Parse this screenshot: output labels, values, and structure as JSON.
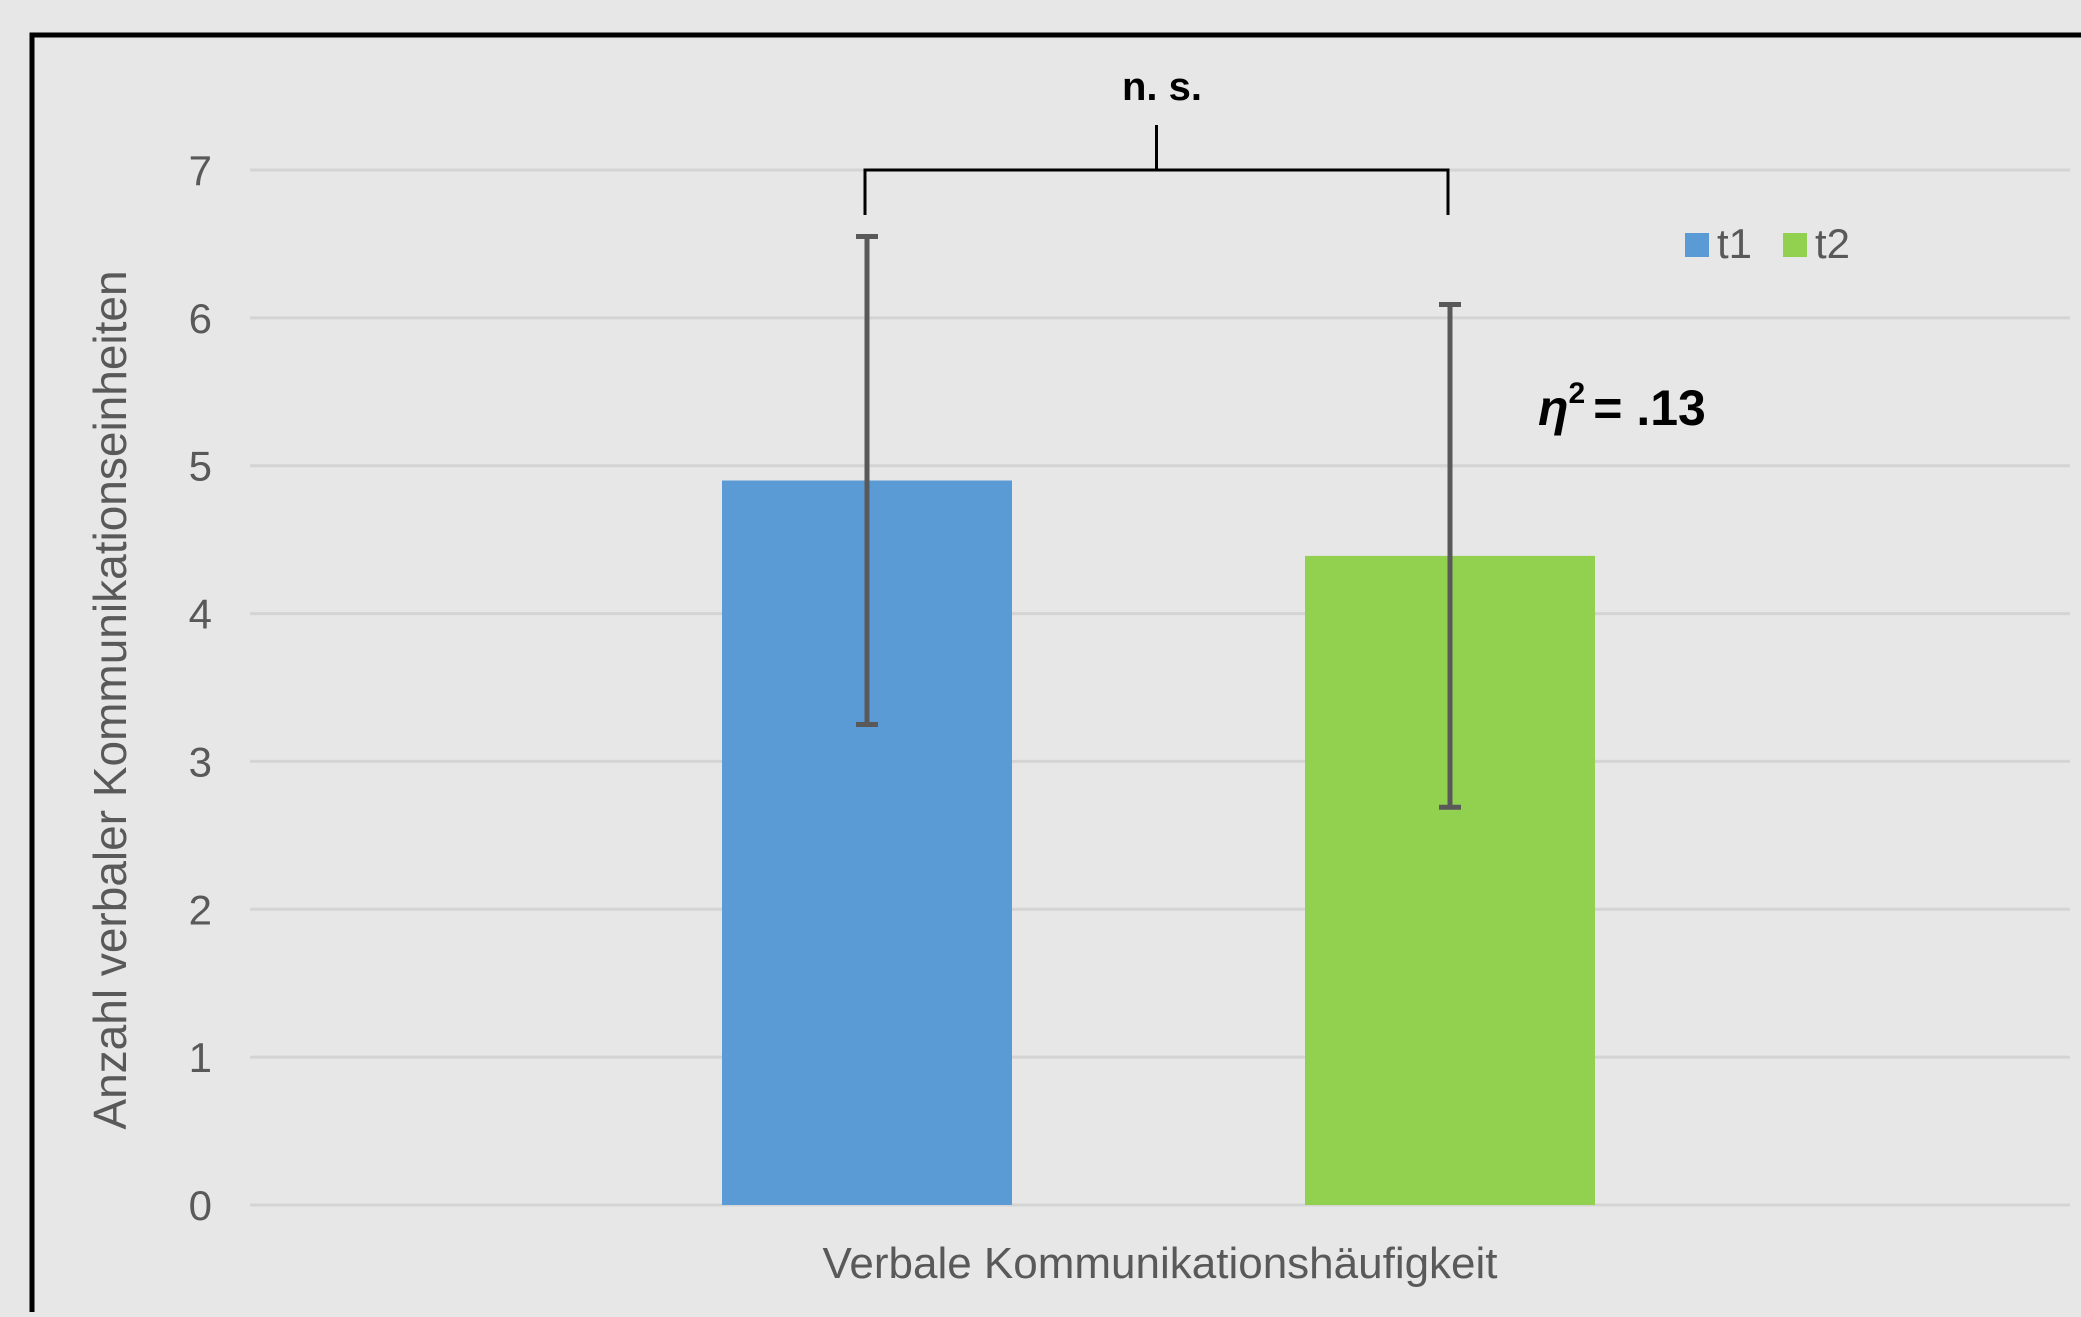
{
  "chart_data": {
    "type": "bar",
    "title": "",
    "xlabel": "",
    "ylabel": "Anzahl verbaler Kommunikationseinheiten",
    "ylim": [
      0,
      7
    ],
    "yticks": [
      0,
      1,
      2,
      3,
      4,
      5,
      6,
      7
    ],
    "grid": true,
    "legend_position": "top-right",
    "categories": [
      "Verbale Kommunikationshäufigkeit"
    ],
    "series": [
      {
        "name": "t1",
        "values": [
          4.9
        ],
        "error_low": [
          3.25
        ],
        "error_high": [
          6.55
        ],
        "color": "#5b9bd5"
      },
      {
        "name": "t2",
        "values": [
          4.39
        ],
        "error_low": [
          2.69
        ],
        "error_high": [
          6.09
        ],
        "color": "#92d050"
      }
    ],
    "annotations": {
      "significance": "n. s.",
      "effect_symbol": "η",
      "effect_exponent": "2",
      "effect_value": "= .13"
    }
  }
}
